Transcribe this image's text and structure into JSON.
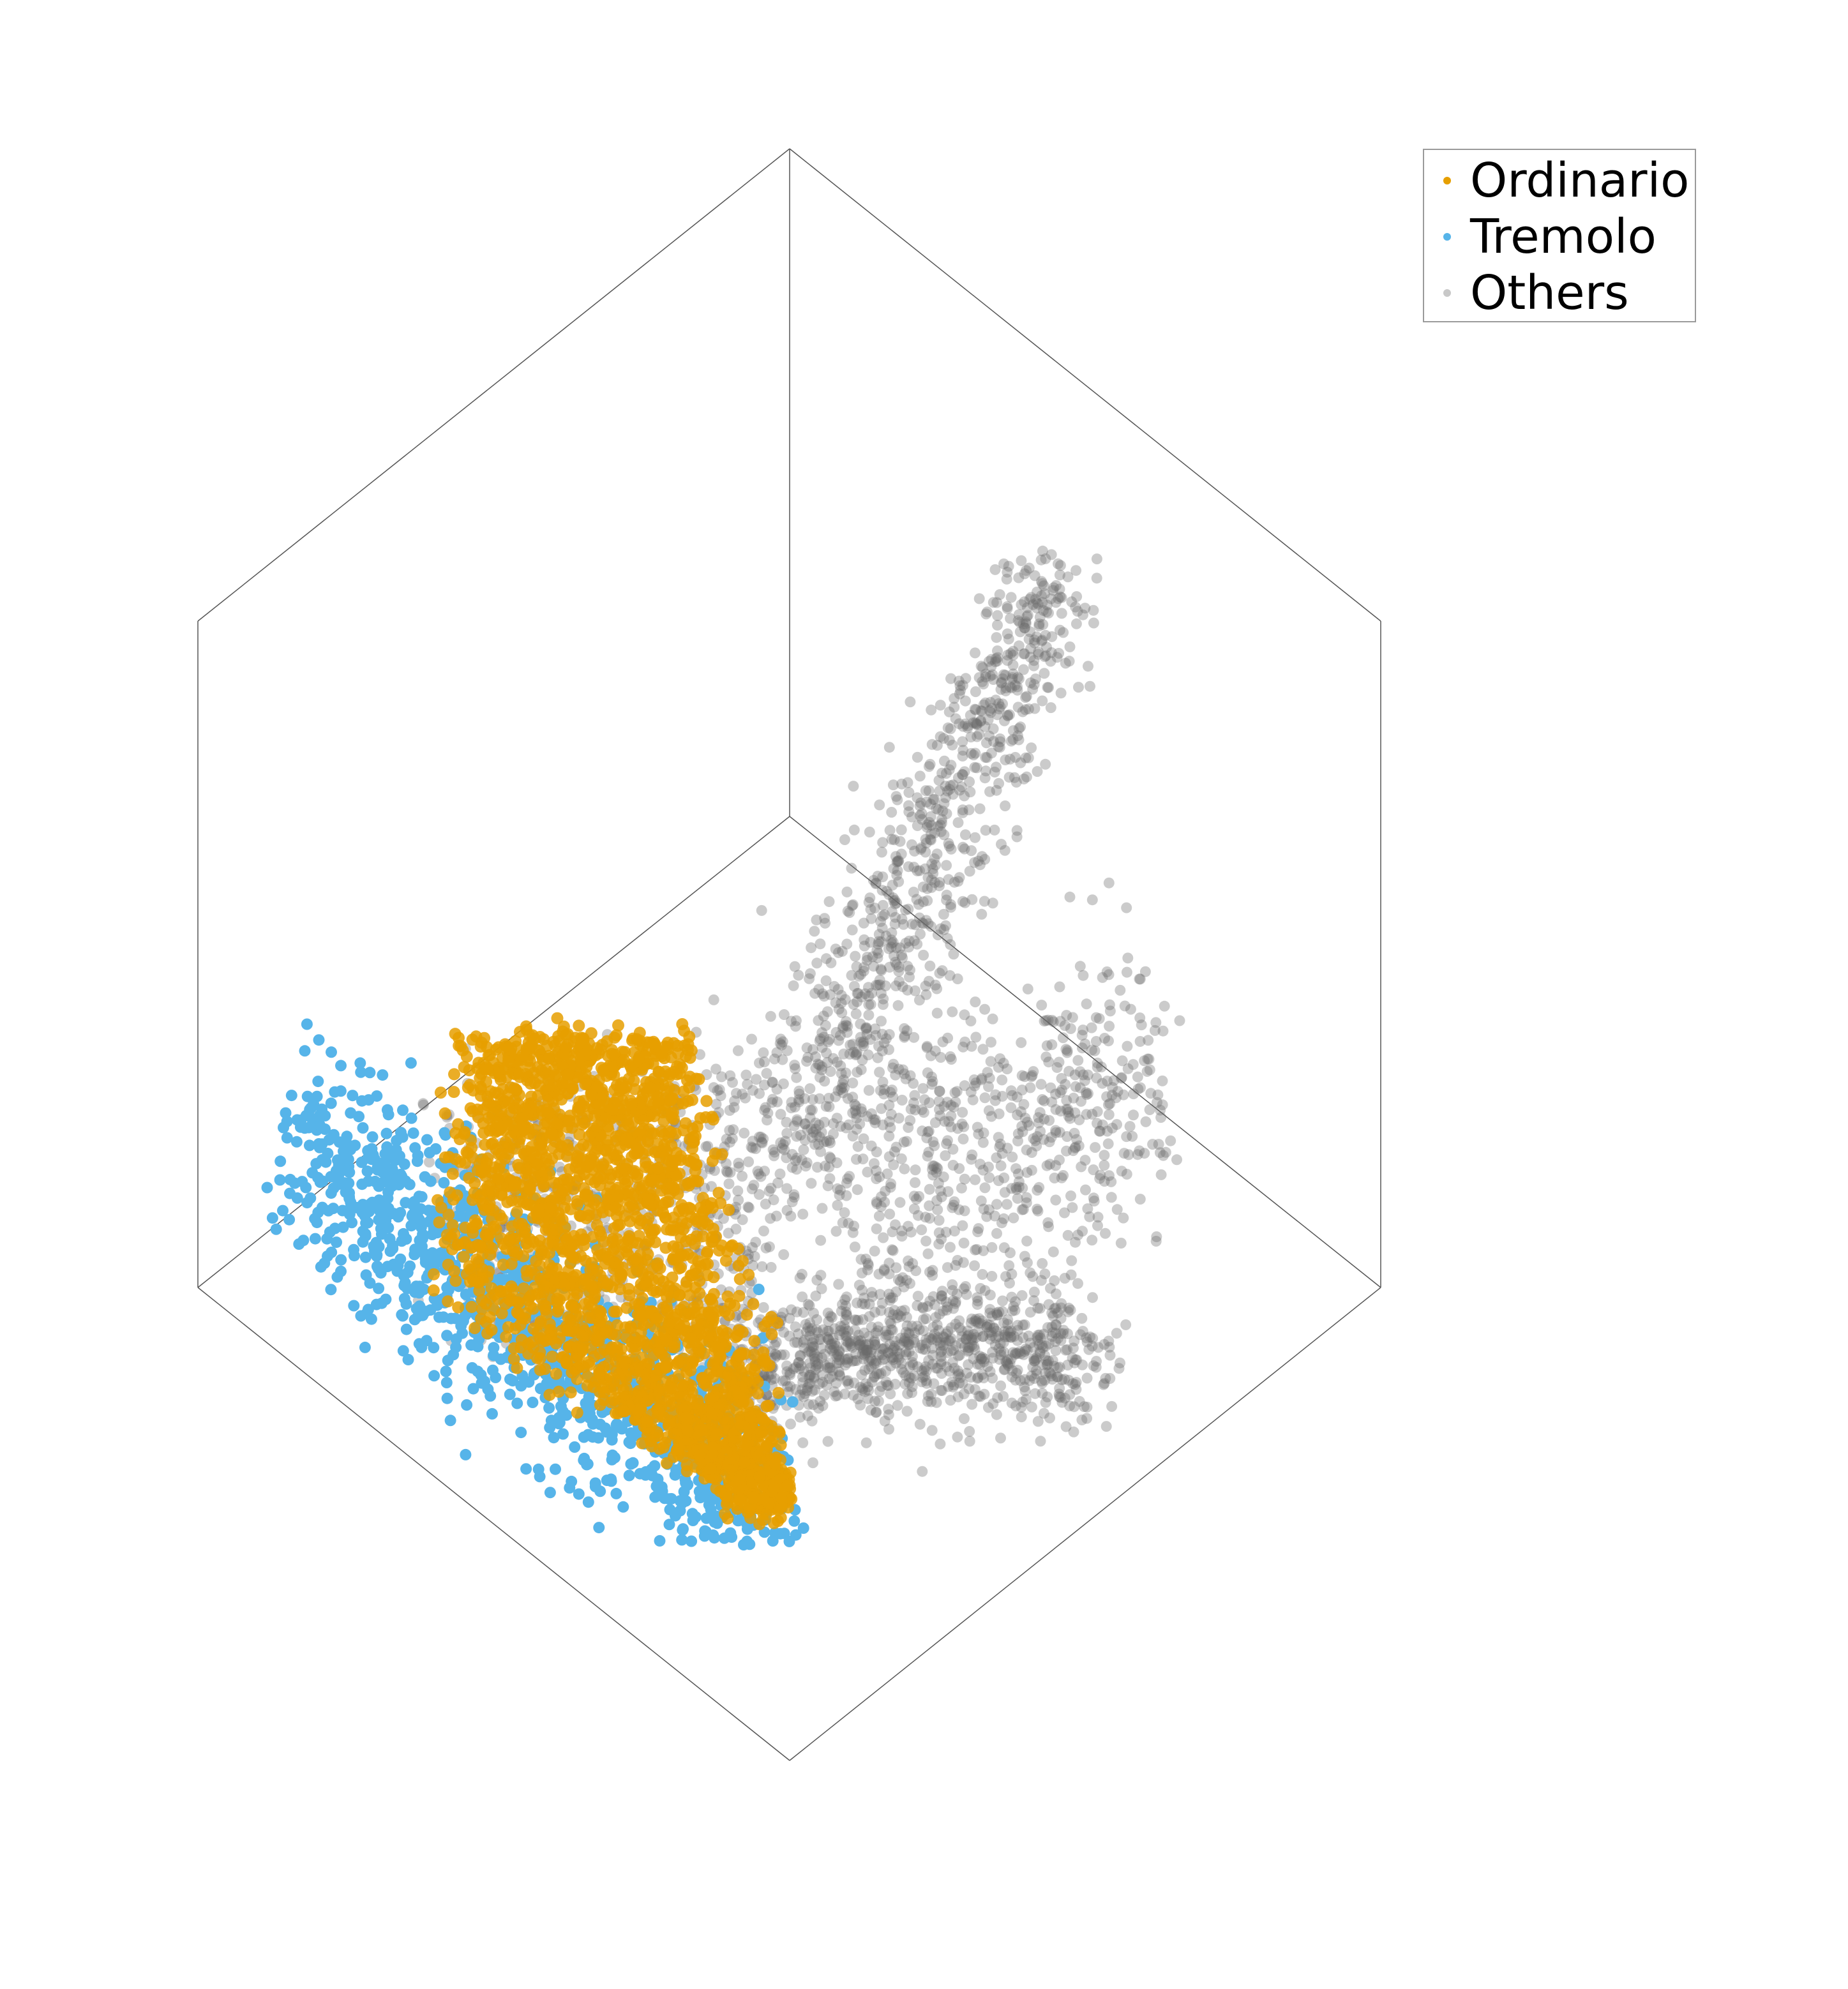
{
  "chart_data": {
    "type": "scatter",
    "projection": "3d",
    "title": "",
    "xlabel": "",
    "ylabel": "",
    "zlabel": "",
    "grid": false,
    "axes_visible": false,
    "legend_position": "top-right",
    "series": [
      {
        "name": "Others",
        "color": "#6b6b6b",
        "alpha": 0.35,
        "shape": "boomerang-cloud",
        "approx_points": 3000,
        "extent": {
          "x": [
            -1.0,
            1.0
          ],
          "y": [
            -0.9,
            1.0
          ],
          "z": [
            -0.9,
            1.0
          ]
        }
      },
      {
        "name": "Tremolo",
        "color": "#56b4e9",
        "alpha": 1.0,
        "shape": "band",
        "approx_points": 1200,
        "extent": {
          "x": [
            -0.95,
            -0.05
          ],
          "y": [
            -0.55,
            0.25
          ],
          "z": [
            -0.45,
            0.25
          ]
        }
      },
      {
        "name": "Ordinario",
        "color": "#e69f00",
        "alpha": 0.85,
        "shape": "wedge",
        "approx_points": 2500,
        "extent": {
          "x": [
            -0.8,
            0.0
          ],
          "y": [
            -0.5,
            0.5
          ],
          "z": [
            -0.4,
            0.5
          ]
        }
      }
    ]
  },
  "legend": {
    "items": [
      {
        "label": "Ordinario",
        "color": "#e69f00"
      },
      {
        "label": "Tremolo",
        "color": "#56b4e9"
      },
      {
        "label": "Others",
        "color": "#c8c8c8"
      }
    ]
  }
}
